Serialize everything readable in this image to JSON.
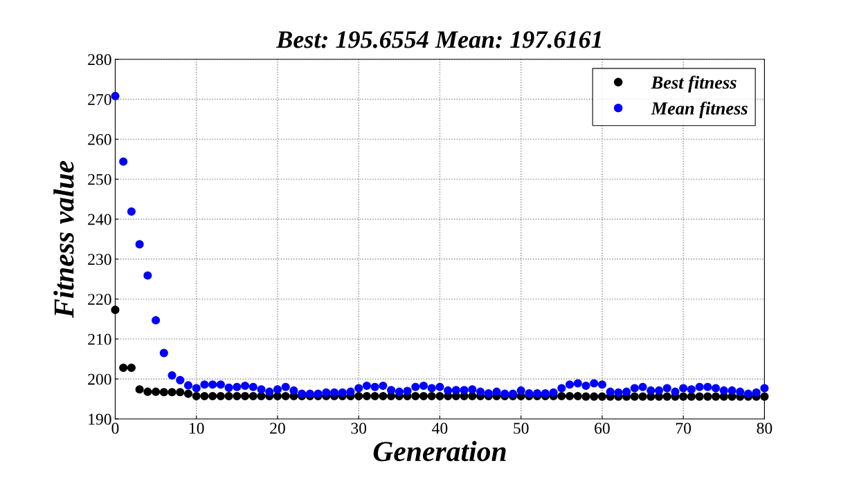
{
  "chart_data": {
    "type": "scatter",
    "title": "Best: 195.6554 Mean: 197.6161",
    "xlabel": "Generation",
    "ylabel": "Fitness value",
    "x": [
      0,
      1,
      2,
      3,
      4,
      5,
      6,
      7,
      8,
      9,
      10,
      11,
      12,
      13,
      14,
      15,
      16,
      17,
      18,
      19,
      20,
      21,
      22,
      23,
      24,
      25,
      26,
      27,
      28,
      29,
      30,
      31,
      32,
      33,
      34,
      35,
      36,
      37,
      38,
      39,
      40,
      41,
      42,
      43,
      44,
      45,
      46,
      47,
      48,
      49,
      50,
      51,
      52,
      53,
      54,
      55,
      56,
      57,
      58,
      59,
      60,
      61,
      62,
      63,
      64,
      65,
      66,
      67,
      68,
      69,
      70,
      71,
      72,
      73,
      74,
      75,
      76,
      77,
      78,
      79,
      80
    ],
    "series": [
      {
        "name": "Best fitness",
        "color": "#000000",
        "values": [
          217.3,
          202.8,
          202.8,
          197.4,
          196.8,
          196.8,
          196.7,
          196.7,
          196.7,
          196.3,
          195.7,
          195.7,
          195.7,
          195.7,
          195.7,
          195.7,
          195.7,
          195.7,
          195.7,
          195.7,
          195.7,
          195.7,
          195.7,
          195.7,
          195.7,
          195.7,
          195.7,
          195.7,
          195.7,
          195.7,
          195.7,
          195.7,
          195.7,
          195.7,
          195.7,
          195.7,
          195.7,
          195.7,
          195.7,
          195.7,
          195.7,
          195.7,
          195.7,
          195.7,
          195.7,
          195.7,
          195.7,
          195.7,
          195.7,
          195.7,
          195.7,
          195.7,
          195.7,
          195.7,
          195.7,
          195.7,
          195.7,
          195.7,
          195.6,
          195.6,
          195.6,
          195.6,
          195.6,
          195.6,
          195.6,
          195.6,
          195.6,
          195.6,
          195.6,
          195.6,
          195.6,
          195.6,
          195.6,
          195.6,
          195.6,
          195.6,
          195.6,
          195.6,
          195.6,
          195.6,
          195.6
        ]
      },
      {
        "name": "Mean fitness",
        "color": "#0000ff",
        "values": [
          270.8,
          254.4,
          241.9,
          233.7,
          225.9,
          214.7,
          206.5,
          200.9,
          199.7,
          198.4,
          197.7,
          198.6,
          198.6,
          198.6,
          197.8,
          198.0,
          198.3,
          198.0,
          197.4,
          196.8,
          197.4,
          198.0,
          197.1,
          196.3,
          196.3,
          196.3,
          196.6,
          196.6,
          196.6,
          196.8,
          197.7,
          198.3,
          198.0,
          198.3,
          197.2,
          196.8,
          197.0,
          198.0,
          198.3,
          197.7,
          198.0,
          197.1,
          197.2,
          197.2,
          197.4,
          196.8,
          196.4,
          196.8,
          196.3,
          196.3,
          197.1,
          196.4,
          196.4,
          196.4,
          196.6,
          197.7,
          198.6,
          198.9,
          198.3,
          198.9,
          198.6,
          196.8,
          196.6,
          196.8,
          197.7,
          198.0,
          197.1,
          197.1,
          197.7,
          196.8,
          197.7,
          197.4,
          198.0,
          198.0,
          197.7,
          197.1,
          197.1,
          196.8,
          196.3,
          196.6,
          197.7
        ]
      }
    ],
    "xlim": [
      0,
      80
    ],
    "xticks": [
      0,
      10,
      20,
      30,
      40,
      50,
      60,
      70,
      80
    ],
    "ylim": [
      190,
      280
    ],
    "yticks": [
      190,
      200,
      210,
      220,
      230,
      240,
      250,
      260,
      270,
      280
    ],
    "grid": true,
    "legend": "top right",
    "marker": "circle"
  }
}
